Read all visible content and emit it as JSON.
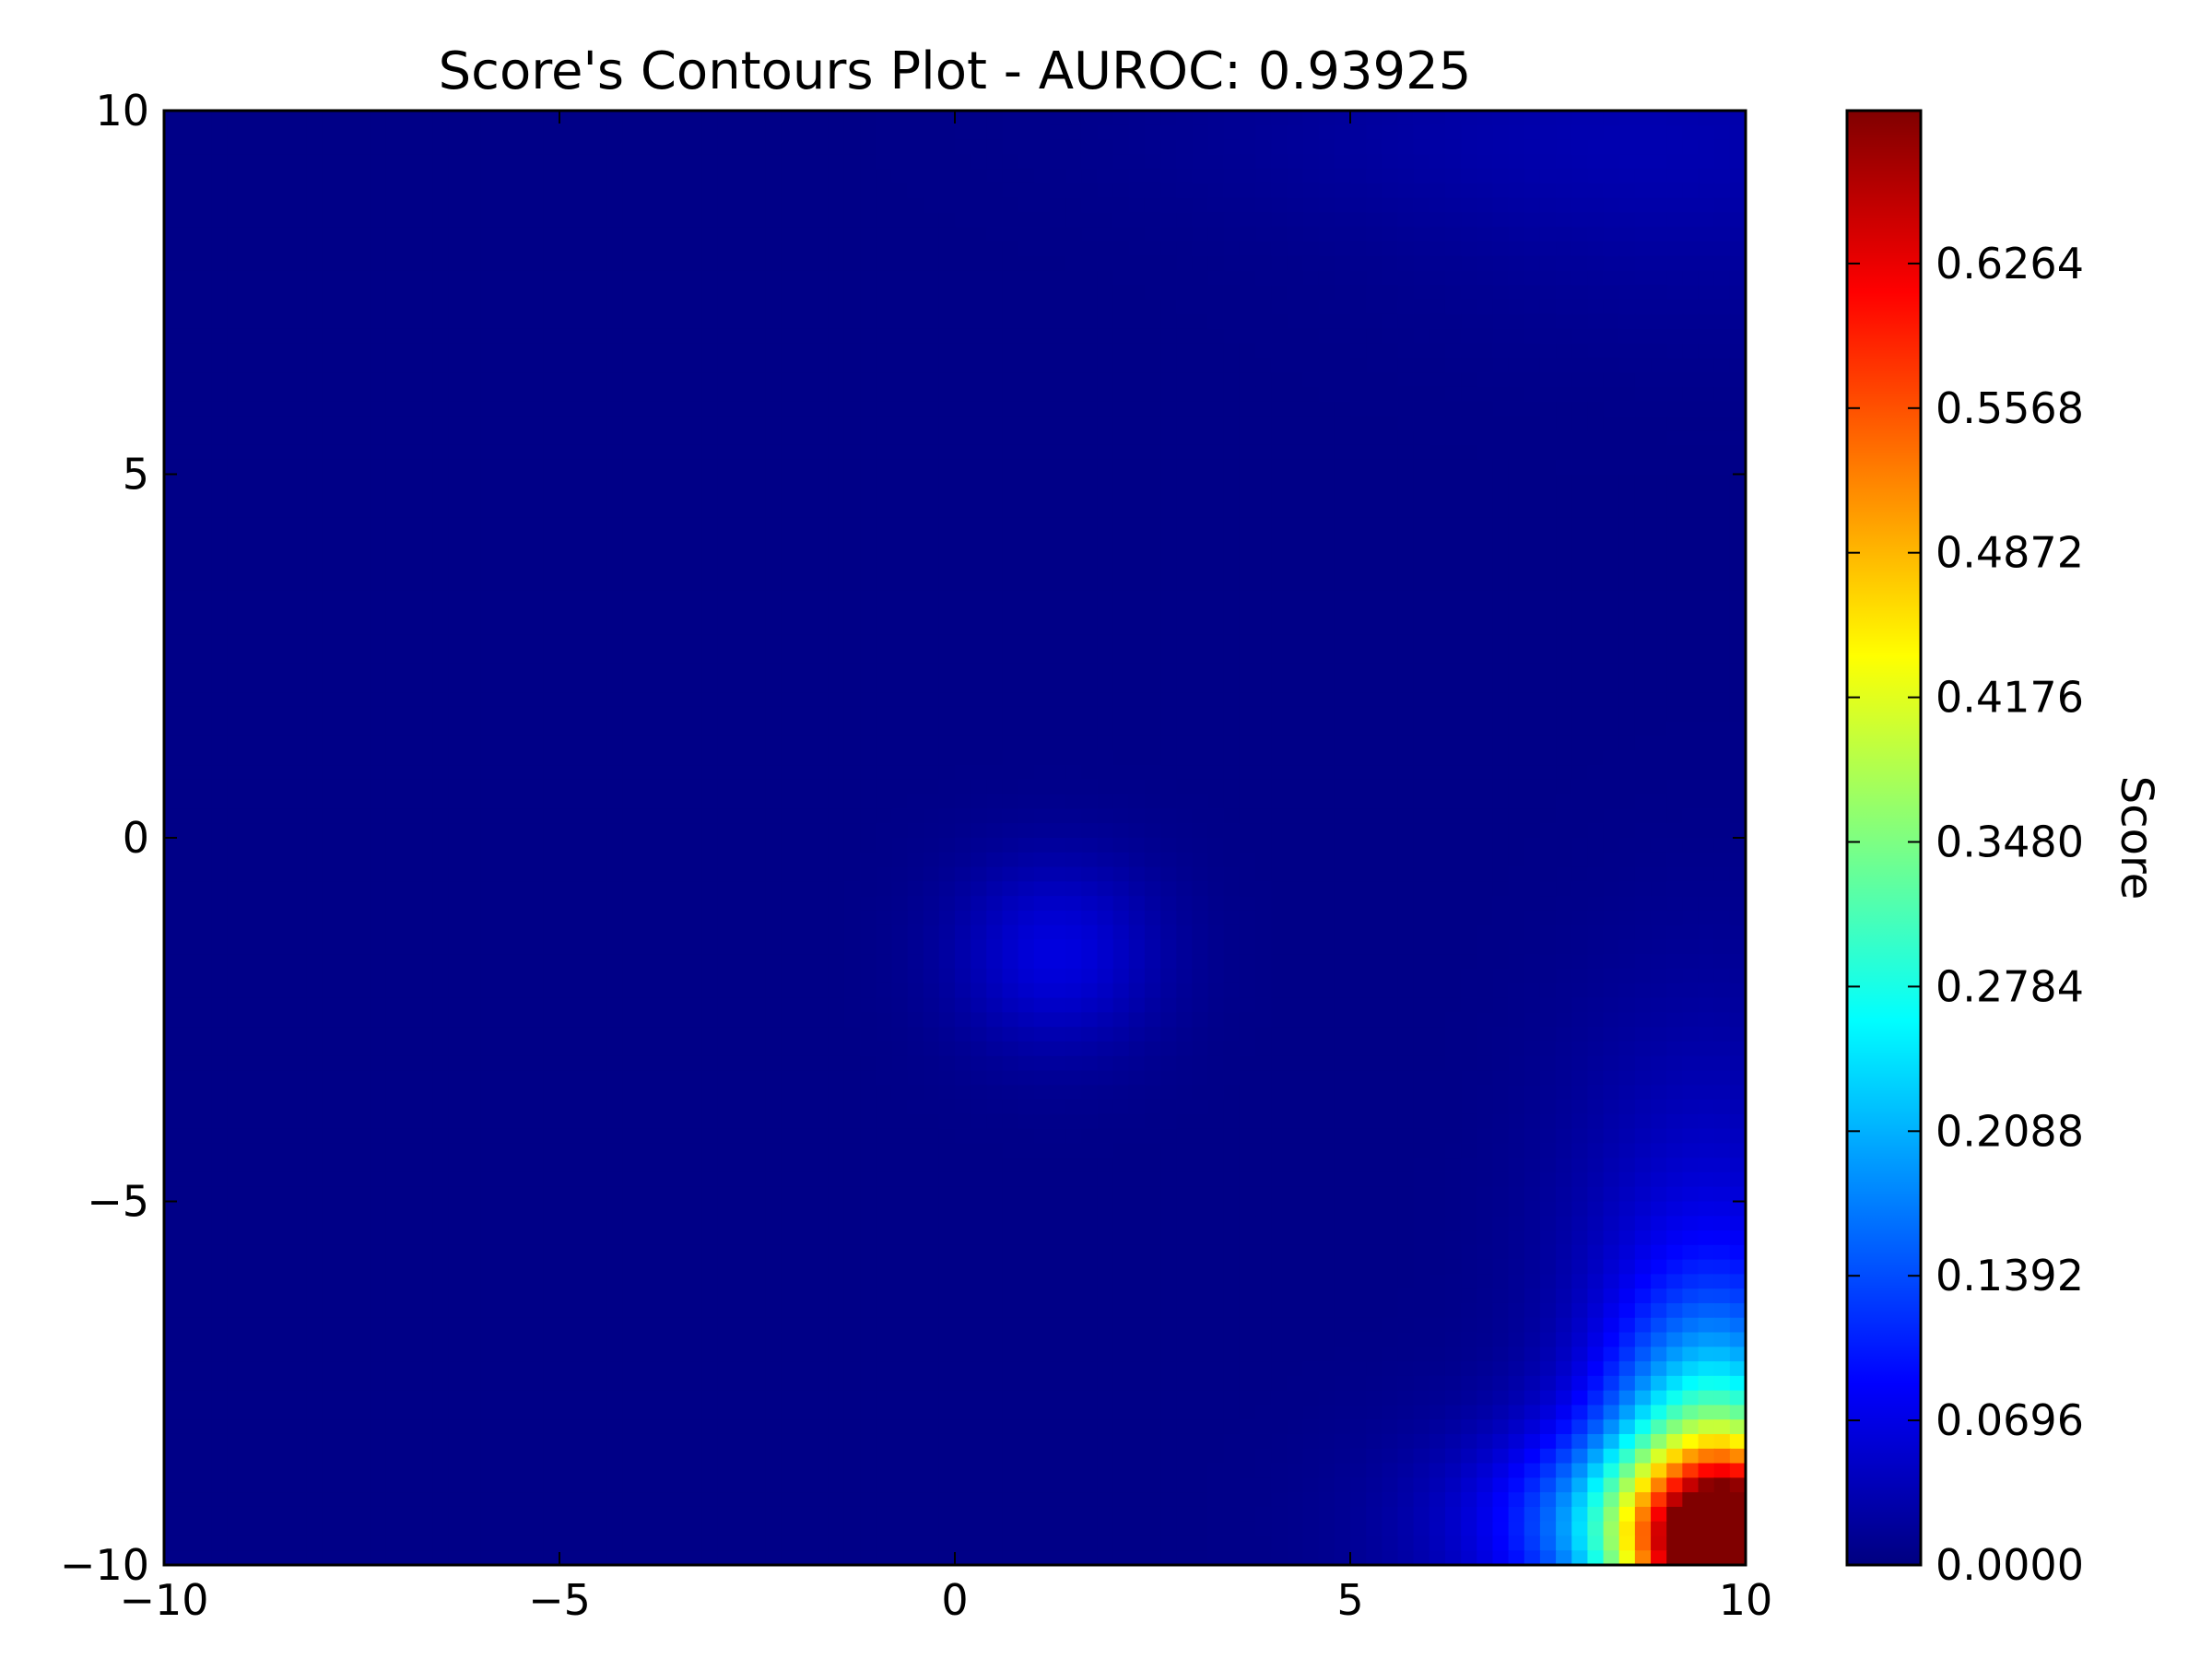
{
  "chart_data": {
    "type": "heatmap",
    "title": "Score's Contours Plot - AUROC: 0.93925",
    "xlabel": "",
    "ylabel": "",
    "xlim": [
      -10,
      10
    ],
    "ylim": [
      -10,
      10
    ],
    "x_ticks": [
      -10,
      -5,
      0,
      5,
      10
    ],
    "y_ticks": [
      -10,
      -5,
      0,
      5,
      10
    ],
    "x_tick_labels": [
      "−10",
      "−5",
      "0",
      "5",
      "10"
    ],
    "y_tick_labels": [
      "−10",
      "−5",
      "0",
      "5",
      "10"
    ],
    "grid": false,
    "colormap": "jet",
    "colorbar": {
      "label": "Score",
      "range": [
        0.0,
        0.7
      ],
      "ticks": [
        0.0,
        0.0696,
        0.1392,
        0.2088,
        0.2784,
        0.348,
        0.4176,
        0.4872,
        0.5568,
        0.6264
      ],
      "tick_labels": [
        "0.0000",
        "0.0696",
        "0.1392",
        "0.2088",
        "0.2784",
        "0.3480",
        "0.4176",
        "0.4872",
        "0.5568",
        "0.6264"
      ]
    },
    "field": {
      "base": 0.005,
      "features": [
        {
          "x": 1.3,
          "y": -1.6,
          "sx": 0.9,
          "sy": 0.9,
          "peak": 0.06
        },
        {
          "x": 9.9,
          "y": -9.9,
          "sx": 0.9,
          "sy": 0.9,
          "peak": 0.63
        },
        {
          "x": 9.6,
          "y": -8.4,
          "sx": 0.9,
          "sy": 1.4,
          "peak": 0.22
        },
        {
          "x": 9.0,
          "y": -9.5,
          "sx": 1.3,
          "sy": 0.9,
          "peak": 0.14
        },
        {
          "x": 9.5,
          "y": -6.5,
          "sx": 1.2,
          "sy": 2.6,
          "peak": 0.06
        },
        {
          "x": 8.0,
          "y": -9.4,
          "sx": 1.6,
          "sy": 1.0,
          "peak": 0.05
        },
        {
          "x": 9.5,
          "y": 9.3,
          "sx": 2.6,
          "sy": 1.6,
          "peak": 0.02
        },
        {
          "x": 6.5,
          "y": 9.7,
          "sx": 3.0,
          "sy": 0.9,
          "peak": 0.012
        }
      ]
    }
  }
}
